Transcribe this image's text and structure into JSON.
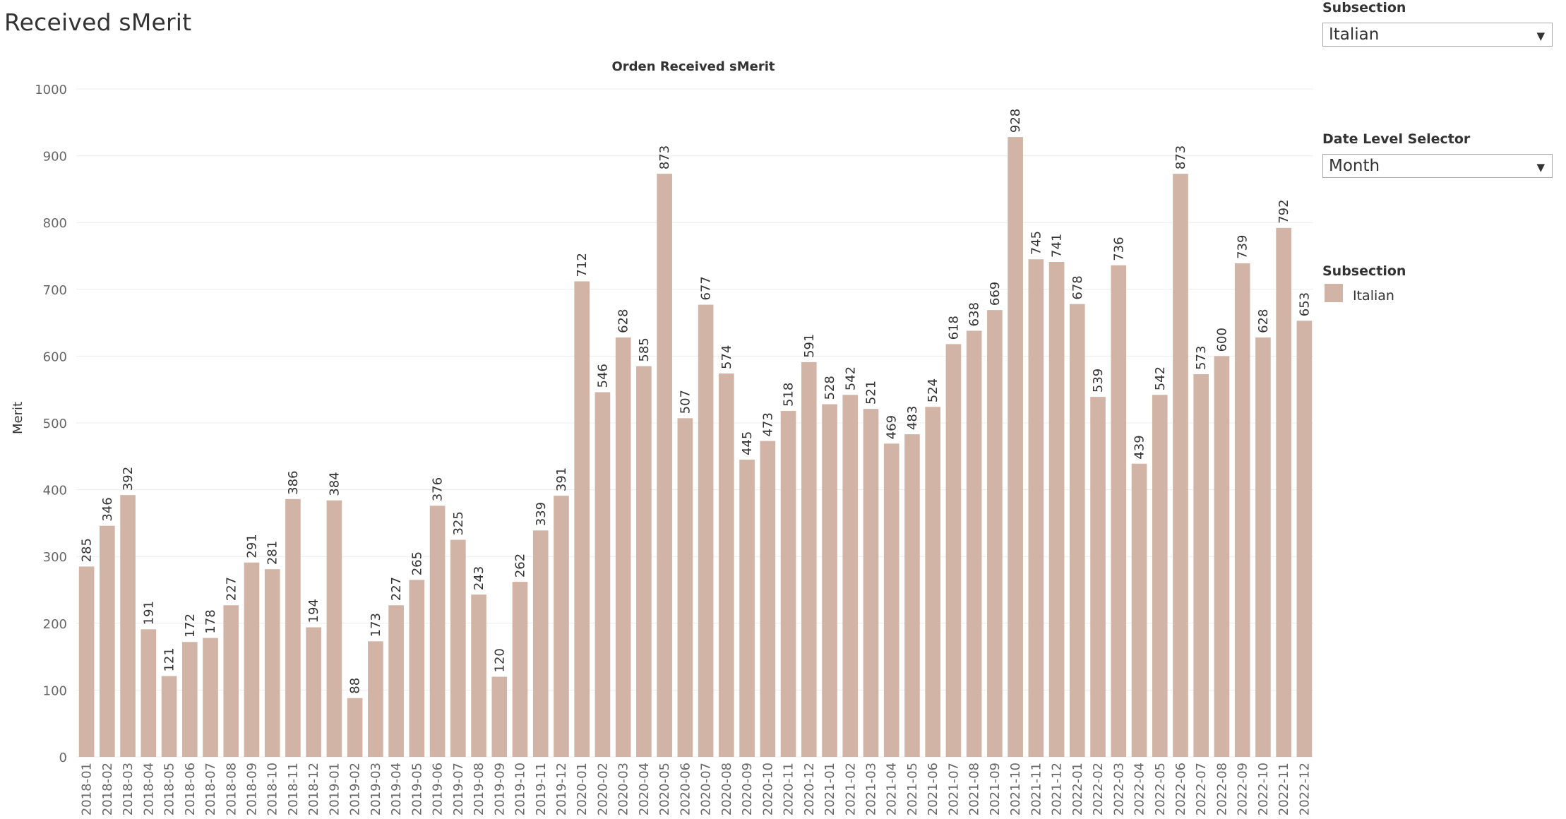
{
  "page": {
    "title": "Received sMerit"
  },
  "filters": {
    "subsection": {
      "label": "Subsection",
      "value": "Italian"
    },
    "date_level": {
      "label": "Date Level Selector",
      "value": "Month"
    }
  },
  "legend": {
    "title": "Subsection",
    "items": [
      {
        "label": "Italian",
        "color": "#d1b4a5"
      }
    ]
  },
  "chart_data": {
    "type": "bar",
    "title": "Orden Received sMerit",
    "xlabel": "",
    "ylabel": "Merit",
    "ylim": [
      0,
      1000
    ],
    "yticks": [
      0,
      100,
      200,
      300,
      400,
      500,
      600,
      700,
      800,
      900,
      1000
    ],
    "grid": true,
    "bar_color": "#d1b4a5",
    "categories": [
      "2018-01",
      "2018-02",
      "2018-03",
      "2018-04",
      "2018-05",
      "2018-06",
      "2018-07",
      "2018-08",
      "2018-09",
      "2018-10",
      "2018-11",
      "2018-12",
      "2019-01",
      "2019-02",
      "2019-03",
      "2019-04",
      "2019-05",
      "2019-06",
      "2019-07",
      "2019-08",
      "2019-09",
      "2019-10",
      "2019-11",
      "2019-12",
      "2020-01",
      "2020-02",
      "2020-03",
      "2020-04",
      "2020-05",
      "2020-06",
      "2020-07",
      "2020-08",
      "2020-09",
      "2020-10",
      "2020-11",
      "2020-12",
      "2021-01",
      "2021-02",
      "2021-03",
      "2021-04",
      "2021-05",
      "2021-06",
      "2021-07",
      "2021-08",
      "2021-09",
      "2021-10",
      "2021-11",
      "2021-12",
      "2022-01",
      "2022-02",
      "2022-03",
      "2022-04",
      "2022-05",
      "2022-06",
      "2022-07",
      "2022-08",
      "2022-09",
      "2022-10",
      "2022-11",
      "2022-12"
    ],
    "series": [
      {
        "name": "Italian",
        "values": [
          285,
          346,
          392,
          191,
          121,
          172,
          178,
          227,
          291,
          281,
          386,
          194,
          384,
          88,
          173,
          227,
          265,
          376,
          325,
          243,
          120,
          262,
          339,
          391,
          712,
          546,
          628,
          585,
          873,
          507,
          677,
          574,
          445,
          473,
          518,
          591,
          528,
          542,
          521,
          469,
          483,
          524,
          618,
          638,
          669,
          928,
          745,
          741,
          678,
          539,
          736,
          439,
          542,
          873,
          573,
          600,
          739,
          628,
          792,
          653
        ]
      }
    ]
  }
}
